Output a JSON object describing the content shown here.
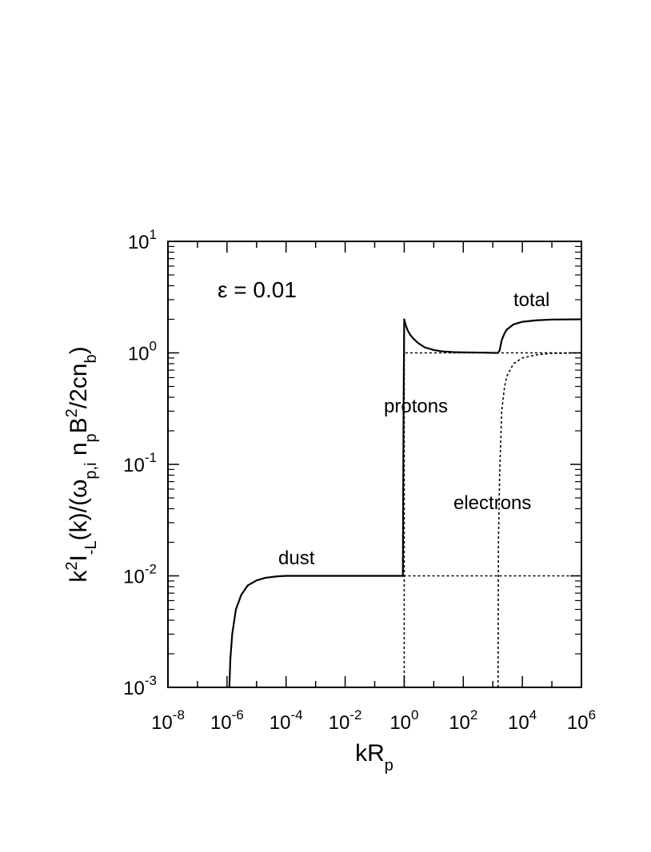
{
  "chart_data": {
    "type": "line",
    "title": "",
    "xlabel": {
      "base": "kR",
      "sub": "p"
    },
    "ylabel": {
      "p1": "k",
      "sup1": "2",
      "p2": "I",
      "sub1": "-L",
      "p3": "(k)/(ω",
      "sub2": "p,i",
      "p4": " n",
      "sub3": "p",
      "p5": "B",
      "sup2": "2",
      "p6": "/2cn",
      "sub4": "b",
      "p7": ")"
    },
    "x_scale": "log",
    "y_scale": "log",
    "xlim": [
      1e-08,
      1000000.0
    ],
    "ylim": [
      0.001,
      10
    ],
    "x_ticks": [
      {
        "value": 1e-08,
        "base": "10",
        "exp": "-8"
      },
      {
        "value": 1e-06,
        "base": "10",
        "exp": "-6"
      },
      {
        "value": 0.0001,
        "base": "10",
        "exp": "-4"
      },
      {
        "value": 0.01,
        "base": "10",
        "exp": "-2"
      },
      {
        "value": 1,
        "base": "10",
        "exp": "0"
      },
      {
        "value": 100.0,
        "base": "10",
        "exp": "2"
      },
      {
        "value": 10000.0,
        "base": "10",
        "exp": "4"
      },
      {
        "value": 1000000.0,
        "base": "10",
        "exp": "6"
      }
    ],
    "y_ticks": [
      {
        "value": 0.001,
        "base": "10",
        "exp": "-3"
      },
      {
        "value": 0.01,
        "base": "10",
        "exp": "-2"
      },
      {
        "value": 0.1,
        "base": "10",
        "exp": "-1"
      },
      {
        "value": 1,
        "base": "10",
        "exp": "0"
      },
      {
        "value": 10,
        "base": "10",
        "exp": "1"
      }
    ],
    "grid": false,
    "annotations": {
      "epsilon": "ε = 0.01",
      "total": "total",
      "protons": "protons",
      "electrons": "electrons",
      "dust": "dust"
    },
    "series": [
      {
        "style": "solid",
        "x": [
          1.2e-06,
          1.3e-06,
          1.5e-06,
          2e-06,
          3e-06,
          5e-06,
          1e-05,
          2e-05,
          5e-05,
          0.0001,
          0.001,
          0.01,
          0.1,
          0.9,
          0.95,
          1.0,
          1.1,
          1.3,
          1.6,
          2,
          3,
          5,
          10,
          20,
          50,
          100,
          500,
          1000,
          1500,
          1700,
          2000,
          2500,
          3000,
          5000,
          10000.0,
          30000.0,
          100000.0,
          1000000.0
        ],
        "y": [
          0.001,
          0.0018,
          0.003,
          0.005,
          0.0067,
          0.0082,
          0.0091,
          0.0096,
          0.0099,
          0.01,
          0.01,
          0.01,
          0.01,
          0.01,
          0.3,
          2.0,
          1.8,
          1.6,
          1.45,
          1.35,
          1.22,
          1.12,
          1.06,
          1.03,
          1.015,
          1.01,
          1.005,
          1.0,
          1.0,
          1.05,
          1.3,
          1.5,
          1.62,
          1.8,
          1.9,
          1.96,
          1.99,
          2.0
        ]
      },
      {
        "style": "dashed",
        "x": [
          1.0,
          1.0,
          1.1,
          2,
          10,
          100,
          1000,
          10000.0,
          1000000.0
        ],
        "y": [
          0.001,
          1.0,
          1.0,
          1.0,
          1.0,
          1.0,
          1.0,
          1.0,
          1.0
        ]
      },
      {
        "style": "dashed",
        "x": [
          0.1,
          1.0,
          10,
          100,
          1000,
          10000.0,
          1000000.0
        ],
        "y": [
          0.01,
          0.01,
          0.01,
          0.01,
          0.01,
          0.01,
          0.01
        ]
      },
      {
        "style": "dashed",
        "x": [
          1500,
          1550,
          1700,
          2000,
          2500,
          3000,
          5000,
          10000.0,
          30000.0,
          100000.0,
          1000000.0
        ],
        "y": [
          0.001,
          0.02,
          0.08,
          0.3,
          0.5,
          0.62,
          0.8,
          0.9,
          0.96,
          0.99,
          1.0
        ]
      }
    ]
  }
}
